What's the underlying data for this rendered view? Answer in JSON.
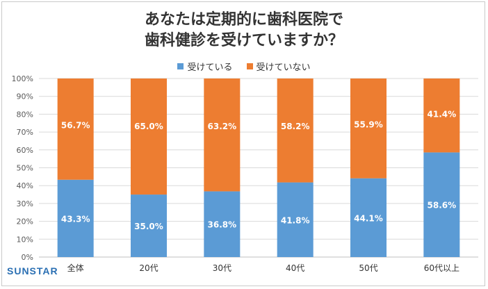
{
  "chart_data": {
    "type": "bar",
    "stacked": true,
    "percent_stacked": true,
    "title_lines": [
      "あなたは定期的に歯科医院で",
      "歯科健診を受けていますか？"
    ],
    "categories": [
      "全体",
      "20代",
      "30代",
      "40代",
      "50代",
      "60代以上"
    ],
    "series": [
      {
        "name": "受けている",
        "color": "#5b9bd5",
        "values": [
          43.3,
          35.0,
          36.8,
          41.8,
          44.1,
          58.6
        ],
        "labels": [
          "43.3%",
          "35.0%",
          "36.8%",
          "41.8%",
          "44.1%",
          "58.6%"
        ]
      },
      {
        "name": "受けていない",
        "color": "#ed7d31",
        "values": [
          56.7,
          65.0,
          63.2,
          58.2,
          55.9,
          41.4
        ],
        "labels": [
          "56.7%",
          "65.0%",
          "63.2%",
          "58.2%",
          "55.9%",
          "41.4%"
        ]
      }
    ],
    "yticks": [
      "0%",
      "10%",
      "20%",
      "30%",
      "40%",
      "50%",
      "60%",
      "70%",
      "80%",
      "90%",
      "100%"
    ],
    "ylim": [
      0,
      100
    ],
    "grid": true,
    "legend_position": "top"
  },
  "brand": "SUNSTAR"
}
